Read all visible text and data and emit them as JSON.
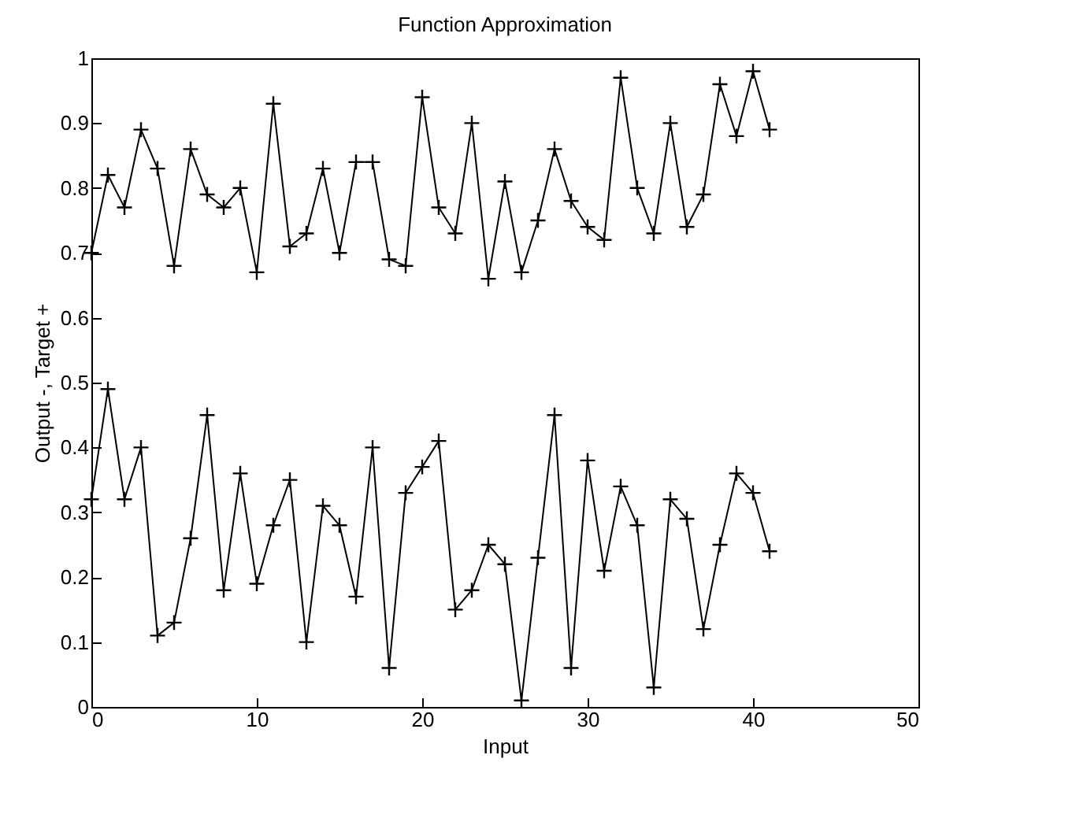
{
  "chart_data": {
    "type": "line",
    "title": "Function Approximation",
    "xlabel": "Input",
    "ylabel": "Output -, Target +",
    "x": [
      0,
      1,
      2,
      3,
      4,
      5,
      6,
      7,
      8,
      9,
      10,
      11,
      12,
      13,
      14,
      15,
      16,
      17,
      18,
      19,
      20,
      21,
      22,
      23,
      24,
      25,
      26,
      27,
      28,
      29,
      30,
      31,
      32,
      33,
      34,
      35,
      36,
      37,
      38,
      39,
      40,
      41
    ],
    "series": [
      {
        "color": "#000000",
        "values": [
          0.7,
          0.82,
          0.77,
          0.89,
          0.83,
          0.68,
          0.86,
          0.79,
          0.77,
          0.8,
          0.67,
          0.93,
          0.71,
          0.73,
          0.83,
          0.7,
          0.84,
          0.84,
          0.69,
          0.68,
          0.94,
          0.77,
          0.73,
          0.9,
          0.66,
          0.81,
          0.67,
          0.75,
          0.86,
          0.78,
          0.74,
          0.72,
          0.97,
          0.8,
          0.73,
          0.9,
          0.74,
          0.79,
          0.96,
          0.88,
          0.98,
          0.89
        ]
      },
      {
        "color": "#000000",
        "values": [
          0.32,
          0.49,
          0.32,
          0.4,
          0.11,
          0.13,
          0.26,
          0.45,
          0.18,
          0.36,
          0.19,
          0.28,
          0.35,
          0.1,
          0.31,
          0.28,
          0.17,
          0.4,
          0.06,
          0.33,
          0.37,
          0.41,
          0.15,
          0.18,
          0.25,
          0.22,
          0.01,
          0.23,
          0.45,
          0.06,
          0.38,
          0.21,
          0.34,
          0.28,
          0.03,
          0.32,
          0.29,
          0.12,
          0.25,
          0.36,
          0.33,
          0.24
        ]
      }
    ],
    "xlim": [
      0,
      50
    ],
    "xticks": [
      0,
      10,
      20,
      30,
      40,
      50
    ],
    "ylim": [
      0,
      1
    ],
    "yticks": [
      0,
      0.1,
      0.2,
      0.3,
      0.4,
      0.5,
      0.6,
      0.7,
      0.8,
      0.9,
      1
    ],
    "grid": false,
    "legend": false,
    "marker": "cross",
    "line_style": "solid"
  }
}
